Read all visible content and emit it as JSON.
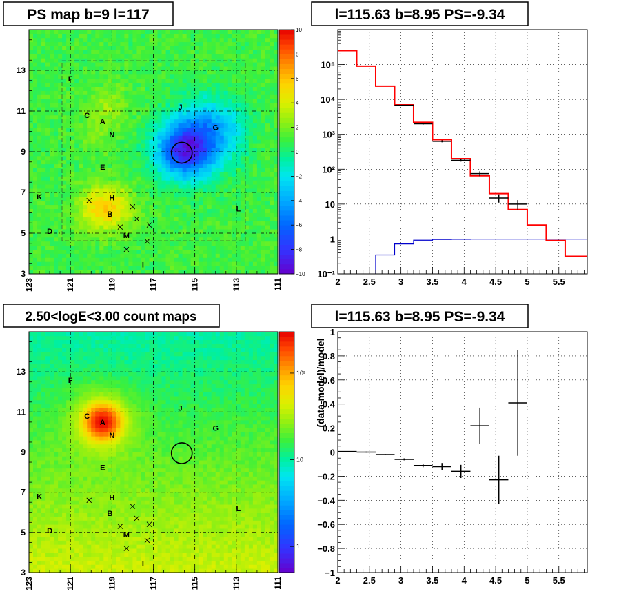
{
  "chart_data": [
    {
      "type": "heatmap",
      "title": "PS map b=9 l=117",
      "x_ticks": [
        "123",
        "121",
        "119",
        "117",
        "115",
        "113",
        "111"
      ],
      "y_ticks": [
        "3",
        "5",
        "7",
        "9",
        "11",
        "13"
      ],
      "xlim": [
        123,
        111
      ],
      "ylim": [
        3,
        15
      ],
      "colorbar": {
        "min": -10,
        "max": 10,
        "ticks": [
          "10",
          "8",
          "6",
          "4",
          "2",
          "0",
          "−2",
          "−4",
          "−6",
          "−8",
          "−10"
        ],
        "scale": "linear"
      },
      "features": [
        {
          "l": 115.6,
          "b": 9.0,
          "sigma": 0.9,
          "amp": -7
        },
        {
          "l": 114.8,
          "b": 9.6,
          "sigma": 1.2,
          "amp": -4
        },
        {
          "l": 114.0,
          "b": 10.3,
          "sigma": 1.0,
          "amp": -2.5
        },
        {
          "l": 119.6,
          "b": 6.2,
          "sigma": 0.8,
          "amp": 3.5
        },
        {
          "l": 118.7,
          "b": 6.3,
          "sigma": 0.7,
          "amp": 2
        },
        {
          "l": 119.2,
          "b": 11.3,
          "sigma": 0.7,
          "amp": 1.5
        },
        {
          "l": 119.8,
          "b": 10.0,
          "sigma": 0.6,
          "amp": 1
        }
      ],
      "base_value": 1.0,
      "sources": [
        {
          "label": "A",
          "l": 119.45,
          "b": 10.5
        },
        {
          "label": "B",
          "l": 119.1,
          "b": 5.95
        },
        {
          "label": "C",
          "l": 120.2,
          "b": 10.8
        },
        {
          "label": "D",
          "l": 122.0,
          "b": 5.1
        },
        {
          "label": "E",
          "l": 119.45,
          "b": 8.25
        },
        {
          "label": "F",
          "l": 121.0,
          "b": 12.6
        },
        {
          "label": "G",
          "l": 114.0,
          "b": 10.2
        },
        {
          "label": "H",
          "l": 119.0,
          "b": 6.75
        },
        {
          "label": "I",
          "l": 117.5,
          "b": 3.45
        },
        {
          "label": "J",
          "l": 115.7,
          "b": 11.2
        },
        {
          "label": "K",
          "l": 122.5,
          "b": 6.8
        },
        {
          "label": "L",
          "l": 112.9,
          "b": 6.2
        },
        {
          "label": "M",
          "l": 118.3,
          "b": 4.9
        },
        {
          "label": "N",
          "l": 119.0,
          "b": 9.85
        }
      ],
      "crosses": [
        [
          120.1,
          6.6
        ],
        [
          118.0,
          6.3
        ],
        [
          117.8,
          5.7
        ],
        [
          118.6,
          5.3
        ],
        [
          117.2,
          5.4
        ],
        [
          118.3,
          4.2
        ],
        [
          117.3,
          4.6
        ]
      ],
      "circle": {
        "l": 115.63,
        "b": 8.95,
        "r": 0.5
      }
    },
    {
      "type": "histogram",
      "title": "l=115.63 b=8.95 PS=-9.34",
      "scale": "log",
      "xlim": [
        2,
        5.95
      ],
      "ylim": [
        0.1,
        1000000
      ],
      "x_ticks": [
        "2",
        "2.5",
        "3",
        "3.5",
        "4",
        "4.5",
        "5",
        "5.5"
      ],
      "y_ticks": [
        "10⁻¹",
        "1",
        "10",
        "10²",
        "10³",
        "10⁴",
        "10⁵"
      ],
      "bin_edges": [
        2,
        2.3,
        2.6,
        2.9,
        3.2,
        3.5,
        3.8,
        4.1,
        4.4,
        4.7,
        5.0,
        5.3,
        5.6,
        5.95
      ],
      "model_total": [
        250000,
        90000,
        24000,
        7000,
        2200,
        700,
        200,
        65,
        20,
        7,
        2.5,
        0.9,
        0.32
      ],
      "model_background": [
        0.05,
        0.09,
        0.35,
        0.72,
        0.92,
        0.97,
        0.98,
        0.99,
        0.99,
        0.99,
        0.99,
        0.99,
        0.99
      ],
      "data_points": [
        {
          "x": 3.05,
          "y": 6800,
          "xerr": 0.15,
          "ylo": 6600,
          "yhi": 7000
        },
        {
          "x": 3.35,
          "y": 2000,
          "xerr": 0.15,
          "ylo": 1900,
          "yhi": 2100
        },
        {
          "x": 3.65,
          "y": 630,
          "xerr": 0.15,
          "ylo": 590,
          "yhi": 670
        },
        {
          "x": 3.95,
          "y": 180,
          "xerr": 0.15,
          "ylo": 165,
          "yhi": 195
        },
        {
          "x": 4.25,
          "y": 75,
          "xerr": 0.15,
          "ylo": 63,
          "yhi": 87
        },
        {
          "x": 4.55,
          "y": 15,
          "xerr": 0.15,
          "ylo": 11,
          "yhi": 19
        },
        {
          "x": 4.85,
          "y": 10,
          "xerr": 0.15,
          "ylo": 7,
          "yhi": 13
        }
      ]
    },
    {
      "type": "heatmap",
      "title": "2.50<logE<3.00 count maps",
      "x_ticks": [
        "123",
        "121",
        "119",
        "117",
        "115",
        "113",
        "111"
      ],
      "y_ticks": [
        "3",
        "5",
        "7",
        "9",
        "11",
        "13"
      ],
      "xlim": [
        123,
        111
      ],
      "ylim": [
        3,
        15
      ],
      "colorbar": {
        "scale": "log",
        "min": 0.5,
        "max": 300,
        "ticks": [
          "10²",
          "10",
          "1"
        ]
      },
      "counts_profile": {
        "at_b3": 40,
        "at_b15": 10
      },
      "features": [
        {
          "l": 119.45,
          "b": 10.5,
          "sigma": 0.45,
          "amp": 250
        },
        {
          "l": 119.5,
          "b": 10.5,
          "sigma": 1.0,
          "amp": 30
        }
      ],
      "sources": [
        {
          "label": "A",
          "l": 119.45,
          "b": 10.5
        },
        {
          "label": "B",
          "l": 119.1,
          "b": 5.95
        },
        {
          "label": "C",
          "l": 120.2,
          "b": 10.8
        },
        {
          "label": "D",
          "l": 122.0,
          "b": 5.1
        },
        {
          "label": "E",
          "l": 119.45,
          "b": 8.25
        },
        {
          "label": "F",
          "l": 121.0,
          "b": 12.6
        },
        {
          "label": "G",
          "l": 114.0,
          "b": 10.2
        },
        {
          "label": "H",
          "l": 119.0,
          "b": 6.75
        },
        {
          "label": "I",
          "l": 117.5,
          "b": 3.45
        },
        {
          "label": "J",
          "l": 115.7,
          "b": 11.2
        },
        {
          "label": "K",
          "l": 122.5,
          "b": 6.8
        },
        {
          "label": "L",
          "l": 112.9,
          "b": 6.2
        },
        {
          "label": "M",
          "l": 118.3,
          "b": 4.9
        },
        {
          "label": "N",
          "l": 119.0,
          "b": 9.85
        }
      ],
      "crosses": [
        [
          120.1,
          6.6
        ],
        [
          118.0,
          6.3
        ],
        [
          117.8,
          5.7
        ],
        [
          118.6,
          5.3
        ],
        [
          117.2,
          5.4
        ],
        [
          118.3,
          4.2
        ],
        [
          117.3,
          4.6
        ]
      ],
      "circle": {
        "l": 115.63,
        "b": 8.95,
        "r": 0.5
      }
    },
    {
      "type": "scatter",
      "title": "l=115.63 b=8.95 PS=-9.34",
      "ylabel": "(data-model)/model",
      "xlim": [
        2,
        5.95
      ],
      "ylim": [
        -1,
        1
      ],
      "x_ticks": [
        "2",
        "2.5",
        "3",
        "3.5",
        "4",
        "4.5",
        "5",
        "5.5"
      ],
      "y_ticks": [
        "−1",
        "−0.8",
        "−0.6",
        "−0.4",
        "−0.2",
        "0",
        "0.2",
        "0.4",
        "0.6",
        "0.8",
        "1"
      ],
      "points": [
        {
          "x": 2.15,
          "y": 0.005,
          "xerr": 0.15,
          "yerr": 0.003
        },
        {
          "x": 2.45,
          "y": 0.0,
          "xerr": 0.15,
          "yerr": 0.004
        },
        {
          "x": 2.75,
          "y": -0.02,
          "xerr": 0.15,
          "yerr": 0.005
        },
        {
          "x": 3.05,
          "y": -0.06,
          "xerr": 0.15,
          "yerr": 0.008
        },
        {
          "x": 3.35,
          "y": -0.11,
          "xerr": 0.15,
          "yerr": 0.015
        },
        {
          "x": 3.65,
          "y": -0.12,
          "xerr": 0.15,
          "yerr": 0.03
        },
        {
          "x": 3.95,
          "y": -0.16,
          "xerr": 0.15,
          "yerr": 0.055
        },
        {
          "x": 4.25,
          "y": 0.22,
          "xerr": 0.15,
          "yerr": 0.15
        },
        {
          "x": 4.55,
          "y": -0.23,
          "xerr": 0.15,
          "yerr": 0.2
        },
        {
          "x": 4.85,
          "y": 0.41,
          "xerr": 0.15,
          "yerr": 0.44
        }
      ]
    }
  ]
}
